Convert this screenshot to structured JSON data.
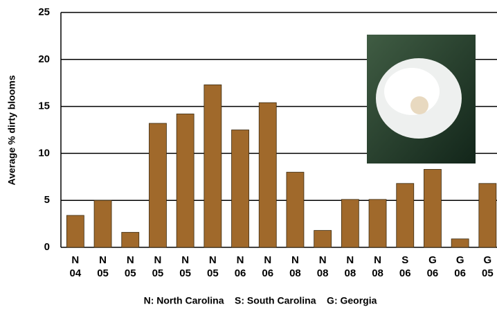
{
  "chart_data": {
    "type": "bar",
    "y_label": "Average % dirty blooms",
    "note": "N: North Carolina    S: South Carolina    G: Georgia",
    "categories": [
      [
        "N",
        "04"
      ],
      [
        "N",
        "05"
      ],
      [
        "N",
        "05"
      ],
      [
        "N",
        "05"
      ],
      [
        "N",
        "05"
      ],
      [
        "N",
        "05"
      ],
      [
        "N",
        "06"
      ],
      [
        "N",
        "06"
      ],
      [
        "N",
        "08"
      ],
      [
        "N",
        "08"
      ],
      [
        "N",
        "08"
      ],
      [
        "N",
        "08"
      ],
      [
        "S",
        "06"
      ],
      [
        "G",
        "06"
      ],
      [
        "G",
        "06"
      ],
      [
        "G",
        "05"
      ]
    ],
    "values": [
      3.4,
      5.0,
      1.6,
      13.2,
      14.2,
      17.3,
      12.5,
      15.4,
      8.0,
      1.8,
      5.1,
      5.1,
      6.8,
      8.3,
      0.9,
      6.8
    ],
    "color": "#a0692b",
    "ylim": [
      0,
      25
    ],
    "yticks": [
      0,
      5,
      10,
      15,
      20,
      25
    ],
    "grid": true
  }
}
